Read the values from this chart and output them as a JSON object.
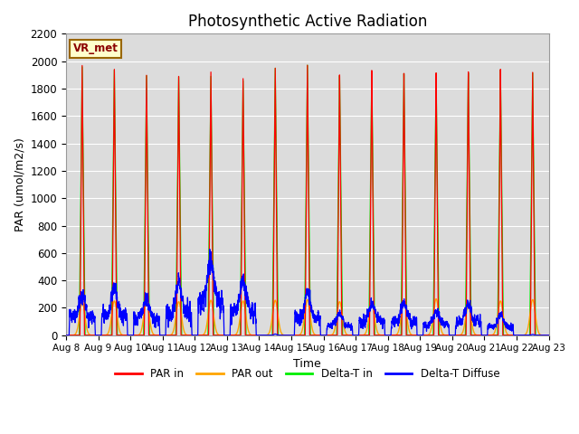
{
  "title": "Photosynthetic Active Radiation",
  "ylabel": "PAR (umol/m2/s)",
  "xlabel": "Time",
  "annotation_text": "VR_met",
  "ylim": [
    0,
    2200
  ],
  "background_color": "#dcdcdc",
  "line_colors": {
    "par_in": "#ff0000",
    "par_out": "#ffa500",
    "delta_t_in": "#00ee00",
    "delta_t_diffuse": "#0000ff"
  },
  "legend_labels": [
    "PAR in",
    "PAR out",
    "Delta-T in",
    "Delta-T Diffuse"
  ],
  "x_tick_labels": [
    "Aug 8",
    "Aug 9",
    "Aug 10",
    "Aug 11",
    "Aug 12",
    "Aug 13",
    "Aug 14",
    "Aug 15",
    "Aug 16",
    "Aug 17",
    "Aug 18",
    "Aug 19",
    "Aug 20",
    "Aug 21",
    "Aug 22",
    "Aug 23"
  ],
  "num_days": 15,
  "par_in_peaks": [
    1970,
    1945,
    1905,
    1900,
    1935,
    1890,
    1970,
    1995,
    1920,
    1950,
    1925,
    1925,
    1930,
    1945,
    1920
  ],
  "par_out_peaks": [
    240,
    250,
    250,
    245,
    255,
    250,
    255,
    260,
    245,
    240,
    250,
    265,
    215,
    250,
    260
  ],
  "delta_t_peaks": [
    1960,
    1940,
    1900,
    1895,
    1900,
    1870,
    1965,
    1990,
    1910,
    1940,
    1920,
    1920,
    1920,
    1940,
    1915
  ],
  "diffuse_peaks": [
    355,
    395,
    325,
    450,
    645,
    470,
    30,
    355,
    185,
    265,
    280,
    205,
    270,
    170,
    20
  ],
  "diffuse_noisy": [
    1,
    1,
    1,
    1,
    1,
    1,
    0,
    1,
    1,
    1,
    1,
    1,
    1,
    1,
    0
  ]
}
